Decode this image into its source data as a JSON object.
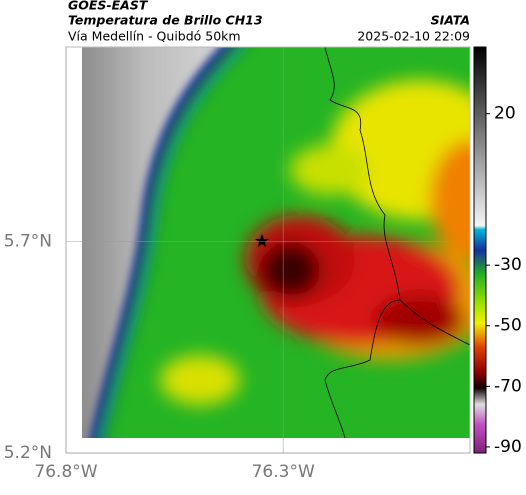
{
  "header": {
    "source": "GOES-EAST",
    "title": "Temperatura de Brillo CH13",
    "subtitle": "Vía Medellín - Quibdó 50km",
    "agency": "SIATA",
    "timestamp": "2025-02-10 22:09"
  },
  "map": {
    "lonlim": [
      -76.8,
      -75.87
    ],
    "latlim": [
      5.2,
      6.16
    ],
    "lonticks": [
      {
        "value": -76.8,
        "label": "76.8°W"
      },
      {
        "value": -76.3,
        "label": "76.3°W"
      }
    ],
    "latticks": [
      {
        "value": 5.7,
        "label": "5.7°N"
      },
      {
        "value": 5.2,
        "label": "5.2°N"
      }
    ]
  },
  "colorbar": {
    "clim": [
      -92,
      42
    ],
    "ticks": [
      20,
      -30,
      -50,
      -70,
      -90
    ]
  }
}
